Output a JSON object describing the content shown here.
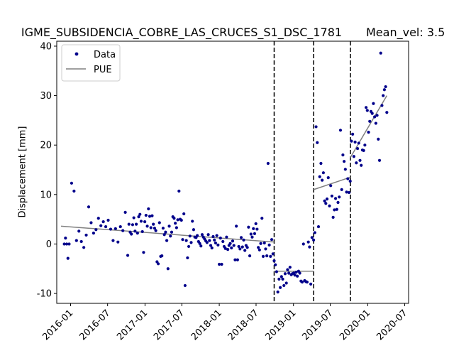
{
  "chart_data": {
    "type": "scatter",
    "title": "IGME_SUBSIDENCIA_COBRE_LAS_CRUCES_S1_DSC_1781",
    "subtitle": "Mean_vel: 3.5",
    "xlabel": "",
    "ylabel": "Displacement [mm]",
    "xlim": [
      "2015-10-25",
      "2020-07-20"
    ],
    "ylim": [
      -12,
      41
    ],
    "x_ticks": [
      "2016-01",
      "2016-07",
      "2017-01",
      "2017-07",
      "2018-01",
      "2018-07",
      "2019-01",
      "2019-07",
      "2020-01",
      "2020-07"
    ],
    "y_ticks": [
      -10,
      0,
      10,
      20,
      30,
      40
    ],
    "grid": false,
    "legend": {
      "placement": "top-left",
      "entries": [
        "Data",
        "PUE"
      ]
    },
    "colors": {
      "data": "#00008b",
      "fit": "#808080",
      "breaks": "#000000"
    },
    "breakpoints": [
      "2018-09-28",
      "2019-04-10",
      "2019-10-08"
    ],
    "series": [
      {
        "name": "Data",
        "points": [
          [
            "2015-12-01",
            0.0
          ],
          [
            "2015-12-07",
            1.2
          ],
          [
            "2015-12-13",
            0.0
          ],
          [
            "2015-12-19",
            -2.9
          ],
          [
            "2015-12-25",
            0.0
          ],
          [
            "2016-01-06",
            12.3
          ],
          [
            "2016-01-18",
            10.7
          ],
          [
            "2016-01-30",
            0.7
          ],
          [
            "2016-02-11",
            2.6
          ],
          [
            "2016-02-23",
            0.5
          ],
          [
            "2016-03-06",
            -0.7
          ],
          [
            "2016-03-18",
            1.8
          ],
          [
            "2016-03-30",
            7.5
          ],
          [
            "2016-04-11",
            4.3
          ],
          [
            "2016-04-23",
            2.2
          ],
          [
            "2016-05-05",
            2.9
          ],
          [
            "2016-05-17",
            5.2
          ],
          [
            "2016-05-29",
            3.7
          ],
          [
            "2016-06-10",
            4.5
          ],
          [
            "2016-06-22",
            3.5
          ],
          [
            "2016-07-04",
            4.8
          ],
          [
            "2016-07-16",
            3.0
          ],
          [
            "2016-07-28",
            0.7
          ],
          [
            "2016-08-09",
            3.1
          ],
          [
            "2016-08-21",
            0.4
          ],
          [
            "2016-09-02",
            3.5
          ],
          [
            "2016-09-14",
            2.7
          ],
          [
            "2016-09-26",
            6.4
          ],
          [
            "2016-10-08",
            -2.3
          ],
          [
            "2016-10-14",
            4.0
          ],
          [
            "2016-10-20",
            2.4
          ],
          [
            "2016-10-26",
            2.0
          ],
          [
            "2016-11-01",
            3.9
          ],
          [
            "2016-11-07",
            5.3
          ],
          [
            "2016-11-13",
            2.6
          ],
          [
            "2016-11-19",
            4.0
          ],
          [
            "2016-11-25",
            2.2
          ],
          [
            "2016-12-01",
            5.5
          ],
          [
            "2016-12-07",
            6.0
          ],
          [
            "2016-12-13",
            4.6
          ],
          [
            "2016-12-19",
            2.5
          ],
          [
            "2016-12-25",
            -1.7
          ],
          [
            "2016-12-31",
            4.5
          ],
          [
            "2017-01-06",
            5.8
          ],
          [
            "2017-01-12",
            3.6
          ],
          [
            "2017-01-18",
            7.1
          ],
          [
            "2017-01-24",
            5.6
          ],
          [
            "2017-01-30",
            3.3
          ],
          [
            "2017-02-05",
            5.7
          ],
          [
            "2017-02-11",
            4.0
          ],
          [
            "2017-02-17",
            3.2
          ],
          [
            "2017-02-23",
            2.7
          ],
          [
            "2017-03-01",
            -3.6
          ],
          [
            "2017-03-07",
            -4.0
          ],
          [
            "2017-03-13",
            4.3
          ],
          [
            "2017-03-19",
            -2.5
          ],
          [
            "2017-03-25",
            -2.4
          ],
          [
            "2017-03-31",
            3.2
          ],
          [
            "2017-04-06",
            1.9
          ],
          [
            "2017-04-12",
            2.4
          ],
          [
            "2017-04-18",
            0.7
          ],
          [
            "2017-04-24",
            -5.0
          ],
          [
            "2017-04-30",
            3.6
          ],
          [
            "2017-05-06",
            1.6
          ],
          [
            "2017-05-12",
            2.4
          ],
          [
            "2017-05-18",
            5.5
          ],
          [
            "2017-05-24",
            5.2
          ],
          [
            "2017-05-30",
            4.2
          ],
          [
            "2017-06-05",
            3.3
          ],
          [
            "2017-06-11",
            4.9
          ],
          [
            "2017-06-17",
            10.7
          ],
          [
            "2017-06-23",
            5.0
          ],
          [
            "2017-06-29",
            4.8
          ],
          [
            "2017-07-05",
            0.9
          ],
          [
            "2017-07-11",
            6.1
          ],
          [
            "2017-07-17",
            -8.4
          ],
          [
            "2017-07-23",
            0.7
          ],
          [
            "2017-07-29",
            -2.8
          ],
          [
            "2017-08-04",
            -0.5
          ],
          [
            "2017-08-10",
            1.6
          ],
          [
            "2017-08-16",
            0.3
          ],
          [
            "2017-08-22",
            4.6
          ],
          [
            "2017-08-28",
            2.9
          ],
          [
            "2017-09-03",
            1.4
          ],
          [
            "2017-09-09",
            1.3
          ],
          [
            "2017-09-15",
            1.7
          ],
          [
            "2017-09-21",
            0.5
          ],
          [
            "2017-09-27",
            0.1
          ],
          [
            "2017-10-03",
            -0.4
          ],
          [
            "2017-10-09",
            1.9
          ],
          [
            "2017-10-15",
            1.4
          ],
          [
            "2017-10-21",
            1.0
          ],
          [
            "2017-10-27",
            0.6
          ],
          [
            "2017-11-02",
            0.3
          ],
          [
            "2017-11-08",
            1.9
          ],
          [
            "2017-11-14",
            0.7
          ],
          [
            "2017-11-20",
            -0.3
          ],
          [
            "2017-11-26",
            -0.8
          ],
          [
            "2017-12-02",
            1.5
          ],
          [
            "2017-12-08",
            0.8
          ],
          [
            "2017-12-14",
            0.2
          ],
          [
            "2017-12-20",
            1.7
          ],
          [
            "2017-12-26",
            -0.2
          ],
          [
            "2018-01-01",
            -4.1
          ],
          [
            "2018-01-07",
            1.2
          ],
          [
            "2018-01-13",
            -4.1
          ],
          [
            "2018-01-19",
            0.5
          ],
          [
            "2018-01-25",
            -0.5
          ],
          [
            "2018-01-31",
            -0.9
          ],
          [
            "2018-02-06",
            1.4
          ],
          [
            "2018-02-12",
            -1.1
          ],
          [
            "2018-02-18",
            -0.3
          ],
          [
            "2018-02-24",
            0.1
          ],
          [
            "2018-03-02",
            -0.8
          ],
          [
            "2018-03-08",
            0.6
          ],
          [
            "2018-03-14",
            -0.3
          ],
          [
            "2018-03-20",
            -3.2
          ],
          [
            "2018-03-26",
            3.6
          ],
          [
            "2018-04-01",
            -3.2
          ],
          [
            "2018-04-07",
            -0.5
          ],
          [
            "2018-04-13",
            -1.0
          ],
          [
            "2018-04-19",
            1.3
          ],
          [
            "2018-04-25",
            -0.6
          ],
          [
            "2018-05-01",
            0.8
          ],
          [
            "2018-05-07",
            -1.3
          ],
          [
            "2018-05-13",
            -0.3
          ],
          [
            "2018-05-19",
            -0.7
          ],
          [
            "2018-05-25",
            3.4
          ],
          [
            "2018-05-31",
            -2.4
          ],
          [
            "2018-06-06",
            2.0
          ],
          [
            "2018-06-12",
            1.4
          ],
          [
            "2018-06-18",
            3.1
          ],
          [
            "2018-06-24",
            2.1
          ],
          [
            "2018-06-30",
            4.1
          ],
          [
            "2018-07-06",
            3.0
          ],
          [
            "2018-07-12",
            -0.7
          ],
          [
            "2018-07-18",
            -1.2
          ],
          [
            "2018-07-24",
            0.1
          ],
          [
            "2018-07-30",
            5.2
          ],
          [
            "2018-08-05",
            -2.5
          ],
          [
            "2018-08-11",
            0.2
          ],
          [
            "2018-08-17",
            -1.0
          ],
          [
            "2018-08-23",
            -2.4
          ],
          [
            "2018-08-29",
            16.3
          ],
          [
            "2018-09-04",
            -0.2
          ],
          [
            "2018-09-10",
            -2.5
          ],
          [
            "2018-09-16",
            0.9
          ],
          [
            "2018-09-22",
            -2.0
          ],
          [
            "2018-09-28",
            -3.4
          ],
          [
            "2018-10-04",
            -4.2
          ],
          [
            "2018-10-10",
            -5.6
          ],
          [
            "2018-10-16",
            -9.7
          ],
          [
            "2018-10-22",
            -7.1
          ],
          [
            "2018-10-28",
            -8.8
          ],
          [
            "2018-11-03",
            -6.6
          ],
          [
            "2018-11-09",
            -7.1
          ],
          [
            "2018-11-15",
            -8.4
          ],
          [
            "2018-11-21",
            -6.0
          ],
          [
            "2018-11-27",
            -7.9
          ],
          [
            "2018-12-03",
            -5.2
          ],
          [
            "2018-12-09",
            -5.9
          ],
          [
            "2018-12-15",
            -4.7
          ],
          [
            "2018-12-21",
            -6.2
          ],
          [
            "2018-12-27",
            -6.0
          ],
          [
            "2019-01-02",
            -5.9
          ],
          [
            "2019-01-08",
            -6.3
          ],
          [
            "2019-01-14",
            -5.7
          ],
          [
            "2019-01-20",
            -6.5
          ],
          [
            "2019-01-26",
            -5.5
          ],
          [
            "2019-02-01",
            -5.9
          ],
          [
            "2019-02-07",
            -7.5
          ],
          [
            "2019-02-13",
            -7.7
          ],
          [
            "2019-02-19",
            0.0
          ],
          [
            "2019-02-25",
            -7.4
          ],
          [
            "2019-03-03",
            -7.6
          ],
          [
            "2019-03-09",
            -7.7
          ],
          [
            "2019-03-15",
            0.4
          ],
          [
            "2019-03-21",
            -0.6
          ],
          [
            "2019-03-27",
            -8.1
          ],
          [
            "2019-04-02",
            1.3
          ],
          [
            "2019-04-10",
            0.8
          ],
          [
            "2019-04-16",
            2.3
          ],
          [
            "2019-04-22",
            23.7
          ],
          [
            "2019-04-28",
            20.5
          ],
          [
            "2019-05-04",
            3.5
          ],
          [
            "2019-05-10",
            13.6
          ],
          [
            "2019-05-16",
            16.3
          ],
          [
            "2019-05-22",
            12.9
          ],
          [
            "2019-05-28",
            14.4
          ],
          [
            "2019-06-03",
            8.7
          ],
          [
            "2019-06-09",
            8.2
          ],
          [
            "2019-06-15",
            9.1
          ],
          [
            "2019-06-21",
            13.4
          ],
          [
            "2019-06-27",
            7.7
          ],
          [
            "2019-07-03",
            11.8
          ],
          [
            "2019-07-09",
            9.7
          ],
          [
            "2019-07-15",
            5.4
          ],
          [
            "2019-07-21",
            6.9
          ],
          [
            "2019-07-27",
            9.2
          ],
          [
            "2019-08-02",
            7.0
          ],
          [
            "2019-08-08",
            8.4
          ],
          [
            "2019-08-14",
            9.5
          ],
          [
            "2019-08-20",
            23.0
          ],
          [
            "2019-08-26",
            11.0
          ],
          [
            "2019-09-01",
            18.0
          ],
          [
            "2019-09-07",
            16.7
          ],
          [
            "2019-09-13",
            15.1
          ],
          [
            "2019-09-19",
            10.5
          ],
          [
            "2019-09-25",
            13.2
          ],
          [
            "2019-10-01",
            10.4
          ],
          [
            "2019-10-07",
            12.7
          ],
          [
            "2019-10-13",
            20.8
          ],
          [
            "2019-10-19",
            22.2
          ],
          [
            "2019-10-25",
            17.7
          ],
          [
            "2019-10-31",
            20.6
          ],
          [
            "2019-11-06",
            16.4
          ],
          [
            "2019-11-12",
            19.3
          ],
          [
            "2019-11-18",
            20.4
          ],
          [
            "2019-11-24",
            16.9
          ],
          [
            "2019-11-30",
            15.9
          ],
          [
            "2019-12-06",
            19.0
          ],
          [
            "2019-12-12",
            18.9
          ],
          [
            "2019-12-18",
            20.0
          ],
          [
            "2019-12-24",
            27.6
          ],
          [
            "2019-12-30",
            27.0
          ],
          [
            "2020-01-05",
            22.6
          ],
          [
            "2020-01-11",
            24.8
          ],
          [
            "2020-01-17",
            26.8
          ],
          [
            "2020-01-23",
            26.4
          ],
          [
            "2020-01-29",
            28.4
          ],
          [
            "2020-02-04",
            25.7
          ],
          [
            "2020-02-10",
            24.4
          ],
          [
            "2020-02-16",
            26.0
          ],
          [
            "2020-02-22",
            21.2
          ],
          [
            "2020-02-28",
            16.9
          ],
          [
            "2020-03-05",
            38.6
          ],
          [
            "2020-03-11",
            28.0
          ],
          [
            "2020-03-17",
            30.0
          ],
          [
            "2020-03-23",
            31.2
          ],
          [
            "2020-03-29",
            31.8
          ],
          [
            "2020-04-04",
            26.6
          ]
        ]
      },
      {
        "name": "PUE",
        "segments": [
          {
            "start": [
              "2015-11-15",
              3.6
            ],
            "end": [
              "2018-09-28",
              0.4
            ]
          },
          {
            "start": [
              "2018-09-28",
              -5.5
            ],
            "end": [
              "2019-04-10",
              -5.5
            ]
          },
          {
            "start": [
              "2019-04-10",
              11.0
            ],
            "end": [
              "2019-10-08",
              13.5
            ]
          },
          {
            "start": [
              "2019-10-08",
              17.5
            ],
            "end": [
              "2020-04-04",
              30.0
            ]
          }
        ]
      }
    ]
  }
}
